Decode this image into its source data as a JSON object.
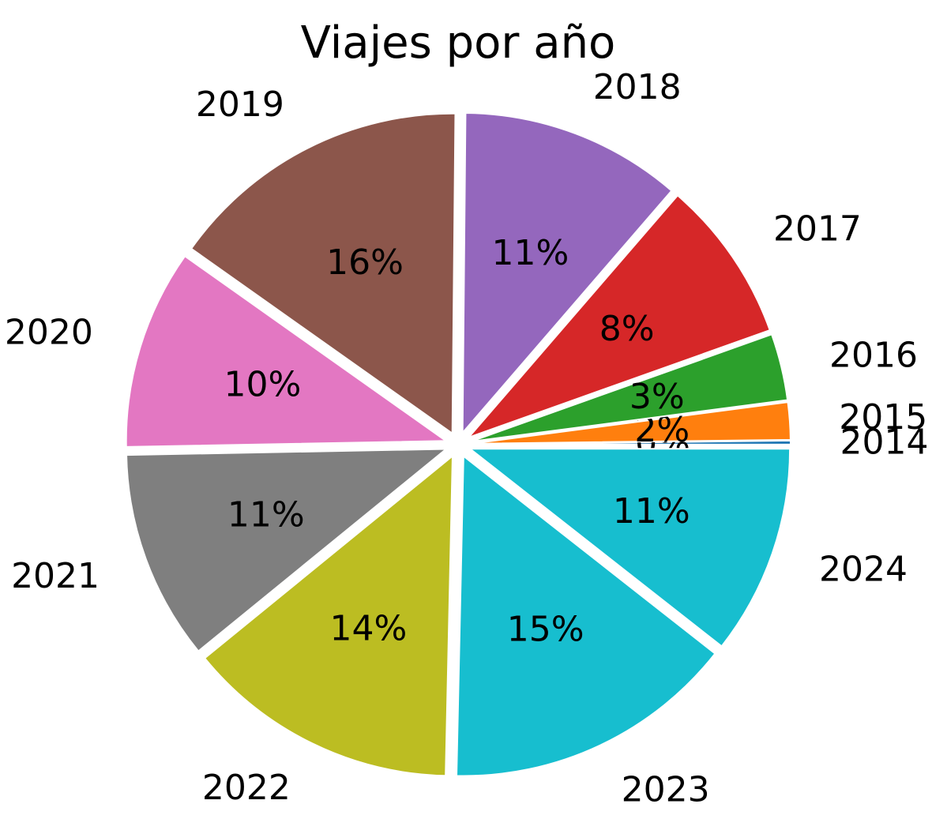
{
  "chart_data": {
    "type": "pie",
    "title": "Viajes por año",
    "start_angle_deg": 0,
    "direction": "counterclockwise",
    "exploded": true,
    "slices": [
      {
        "label": "2014",
        "value": 0.2,
        "pct_label": "0%",
        "color": "#1f77b4"
      },
      {
        "label": "2015",
        "value": 1.9,
        "pct_label": "2%",
        "color": "#ff7f0e"
      },
      {
        "label": "2016",
        "value": 3.4,
        "pct_label": "3%",
        "color": "#2ca02c"
      },
      {
        "label": "2017",
        "value": 8.3,
        "pct_label": "8%",
        "color": "#d62728"
      },
      {
        "label": "2018",
        "value": 11.3,
        "pct_label": "11%",
        "color": "#9467bd"
      },
      {
        "label": "2019",
        "value": 15.5,
        "pct_label": "16%",
        "color": "#8c564b"
      },
      {
        "label": "2020",
        "value": 10.2,
        "pct_label": "10%",
        "color": "#e377c2"
      },
      {
        "label": "2021",
        "value": 10.7,
        "pct_label": "11%",
        "color": "#7f7f7f"
      },
      {
        "label": "2022",
        "value": 13.9,
        "pct_label": "14%",
        "color": "#bcbd22"
      },
      {
        "label": "2023",
        "value": 14.9,
        "pct_label": "15%",
        "color": "#17becf"
      },
      {
        "label": "2024",
        "value": 10.7,
        "pct_label": "11%",
        "color": "#17becf"
      }
    ]
  }
}
